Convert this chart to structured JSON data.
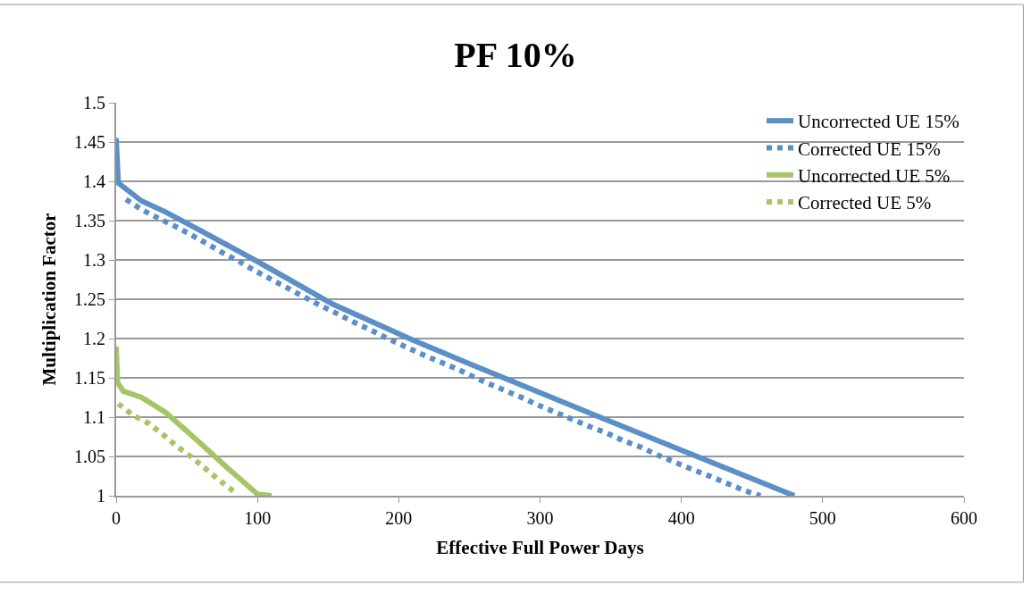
{
  "chart_data": {
    "type": "line",
    "title": "PF 10%",
    "xlabel": "Effective Full Power Days",
    "ylabel": "Multiplication Factor",
    "xlim": [
      0,
      600
    ],
    "xticks": [
      0,
      100,
      200,
      300,
      400,
      500,
      600
    ],
    "ylim": [
      1,
      1.5
    ],
    "yticks": [
      1,
      1.05,
      1.1,
      1.15,
      1.2,
      1.25,
      1.3,
      1.35,
      1.4,
      1.45,
      1.5
    ],
    "grid": "y",
    "legend": "top right",
    "series": [
      {
        "name": "Uncorrected UE 15%",
        "color": "#5b8fc7",
        "line_style": "solid",
        "x": [
          0,
          1.5,
          18,
          35,
          57,
          100,
          153,
          210,
          250,
          345,
          400,
          480
        ],
        "values": [
          1.455,
          1.398,
          1.375,
          1.361,
          1.34,
          1.298,
          1.244,
          1.198,
          1.168,
          1.098,
          1.058,
          1.0
        ]
      },
      {
        "name": "Corrected UE 15%",
        "color": "#5b8fc7",
        "line_style": "dotted",
        "x": [
          7,
          18,
          30,
          41.5,
          53,
          64,
          75.5,
          87,
          98.5,
          110,
          121.5,
          133,
          144.5,
          156,
          168,
          180,
          191,
          203,
          215,
          227,
          239,
          251,
          263,
          275,
          287,
          299,
          311,
          323,
          335,
          347,
          359,
          371,
          383,
          395,
          407,
          420,
          432,
          444,
          456
        ],
        "values": [
          1.377,
          1.364,
          1.353,
          1.343,
          1.332,
          1.321,
          1.309,
          1.298,
          1.286,
          1.275,
          1.264,
          1.253,
          1.242,
          1.232,
          1.221,
          1.211,
          1.201,
          1.191,
          1.181,
          1.172,
          1.163,
          1.153,
          1.143,
          1.134,
          1.125,
          1.115,
          1.106,
          1.097,
          1.088,
          1.08,
          1.07,
          1.062,
          1.052,
          1.043,
          1.034,
          1.025,
          1.016,
          1.007,
          1.0
        ]
      },
      {
        "name": "Uncorrected UE 5%",
        "color": "#a5c566",
        "line_style": "solid",
        "x": [
          0,
          1,
          5,
          18,
          35,
          57,
          79,
          100,
          110
        ],
        "values": [
          1.19,
          1.144,
          1.133,
          1.125,
          1.106,
          1.071,
          1.035,
          1.002,
          1.0
        ]
      },
      {
        "name": "Corrected UE 5%",
        "color": "#a5c566",
        "line_style": "dotted",
        "x": [
          1.5,
          11.5,
          23,
          33,
          43,
          53.5,
          63.5,
          73.5,
          83.5
        ],
        "values": [
          1.117,
          1.103,
          1.092,
          1.078,
          1.063,
          1.049,
          1.034,
          1.019,
          1.005
        ]
      }
    ]
  }
}
